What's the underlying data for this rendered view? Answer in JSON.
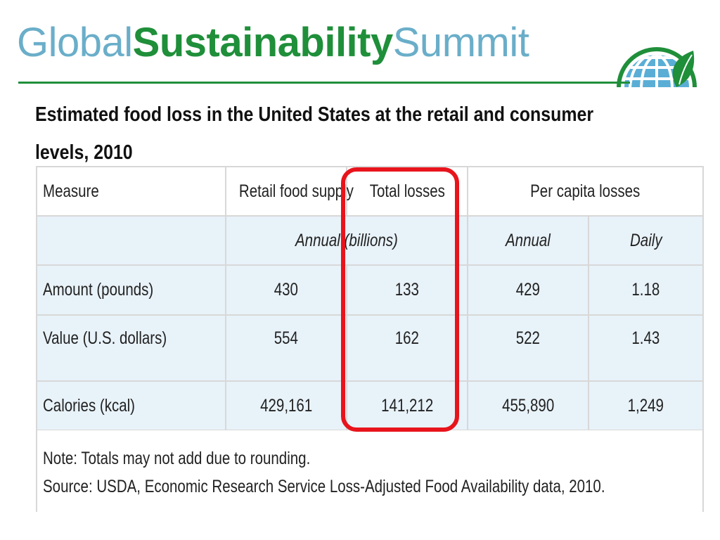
{
  "brand": {
    "part1": "Global",
    "part2": "Sustainability",
    "part3": "Summit"
  },
  "title": "Estimated food loss in the United States at the retail and consumer levels, 2010",
  "table": {
    "header": {
      "measure": "Measure",
      "retail": "Retail food supply",
      "total": "Total losses",
      "per_capita": "Per capita losses"
    },
    "subheader": {
      "annual_billions": "Annual (billions)",
      "annual": "Annual",
      "daily": "Daily"
    },
    "rows": [
      {
        "label": "Amount (pounds)",
        "retail": "430",
        "total": "133",
        "annual": "429",
        "daily": "1.18"
      },
      {
        "label": "Value (U.S. dollars)",
        "retail": "554",
        "total": "162",
        "annual": "522",
        "daily": "1.43"
      },
      {
        "label": "Calories (kcal)",
        "retail": "429,161",
        "total": "141,212",
        "annual": "455,890",
        "daily": "1,249"
      }
    ]
  },
  "notes": {
    "note": "Note: Totals may not add due to rounding.",
    "source": "Source: USDA, Economic Research Service Loss-Adjusted Food Availability data, 2010."
  },
  "colors": {
    "brand_green": "#1f8f3a",
    "brand_blue": "#6aaec9",
    "highlight_red": "#e8141c",
    "row_shade": "#e8f2f9"
  }
}
